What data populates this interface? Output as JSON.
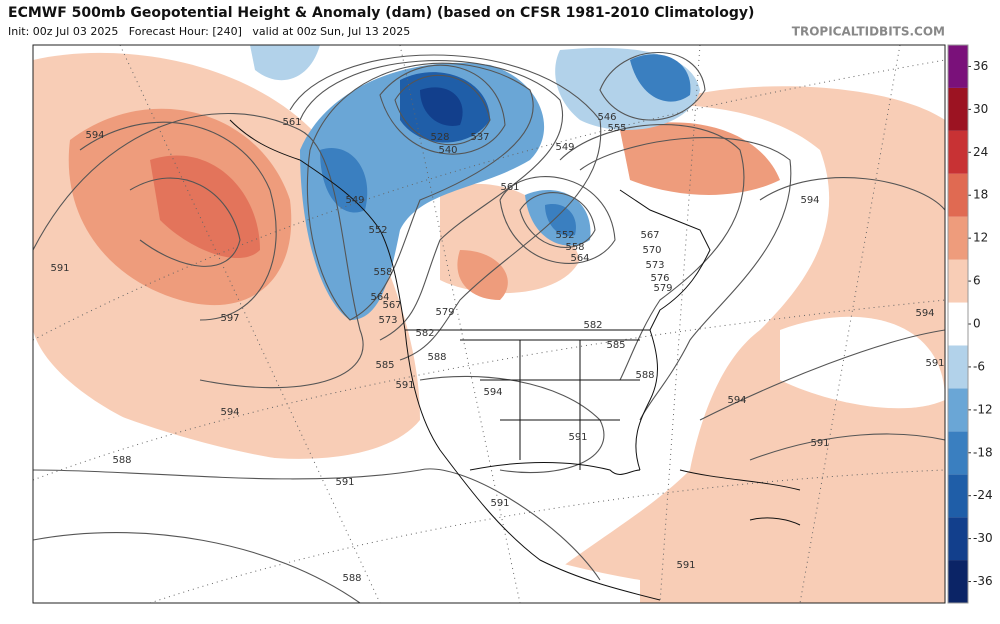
{
  "header": {
    "title": "ECMWF 500mb Geopotential Height & Anomaly (dam) (based on CFSR 1981-2010 Climatology)",
    "subtitle": "Init: 00z Jul 03 2025   Forecast Hour: [240]   valid at 00z Sun, Jul 13 2025",
    "source": "TROPICALTIDBITS.COM"
  },
  "colorbar": {
    "ticks": [
      -36,
      -30,
      -24,
      -18,
      -12,
      -6,
      0,
      6,
      12,
      18,
      24,
      30,
      36
    ],
    "lim": [
      -39,
      39
    ],
    "colors": [
      "#0b2466",
      "#123f8c",
      "#1f5ea8",
      "#3a7fc0",
      "#6aa6d6",
      "#b2d2ea",
      "#ffffff",
      "#f8cdb6",
      "#ee9c7c",
      "#e06a52",
      "#c83234",
      "#9c1322",
      "#7a117a"
    ]
  },
  "contour_labels": [
    "594",
    "561",
    "591",
    "597",
    "594",
    "588",
    "591",
    "588",
    "549",
    "552",
    "558",
    "564",
    "567",
    "573",
    "579",
    "582",
    "588",
    "585",
    "591",
    "594",
    "591",
    "591",
    "591",
    "528",
    "540",
    "537",
    "549",
    "561",
    "552",
    "558",
    "564",
    "567",
    "570",
    "573",
    "576",
    "579",
    "582",
    "585",
    "588",
    "546",
    "555",
    "594",
    "594",
    "591",
    "594",
    "591"
  ]
}
